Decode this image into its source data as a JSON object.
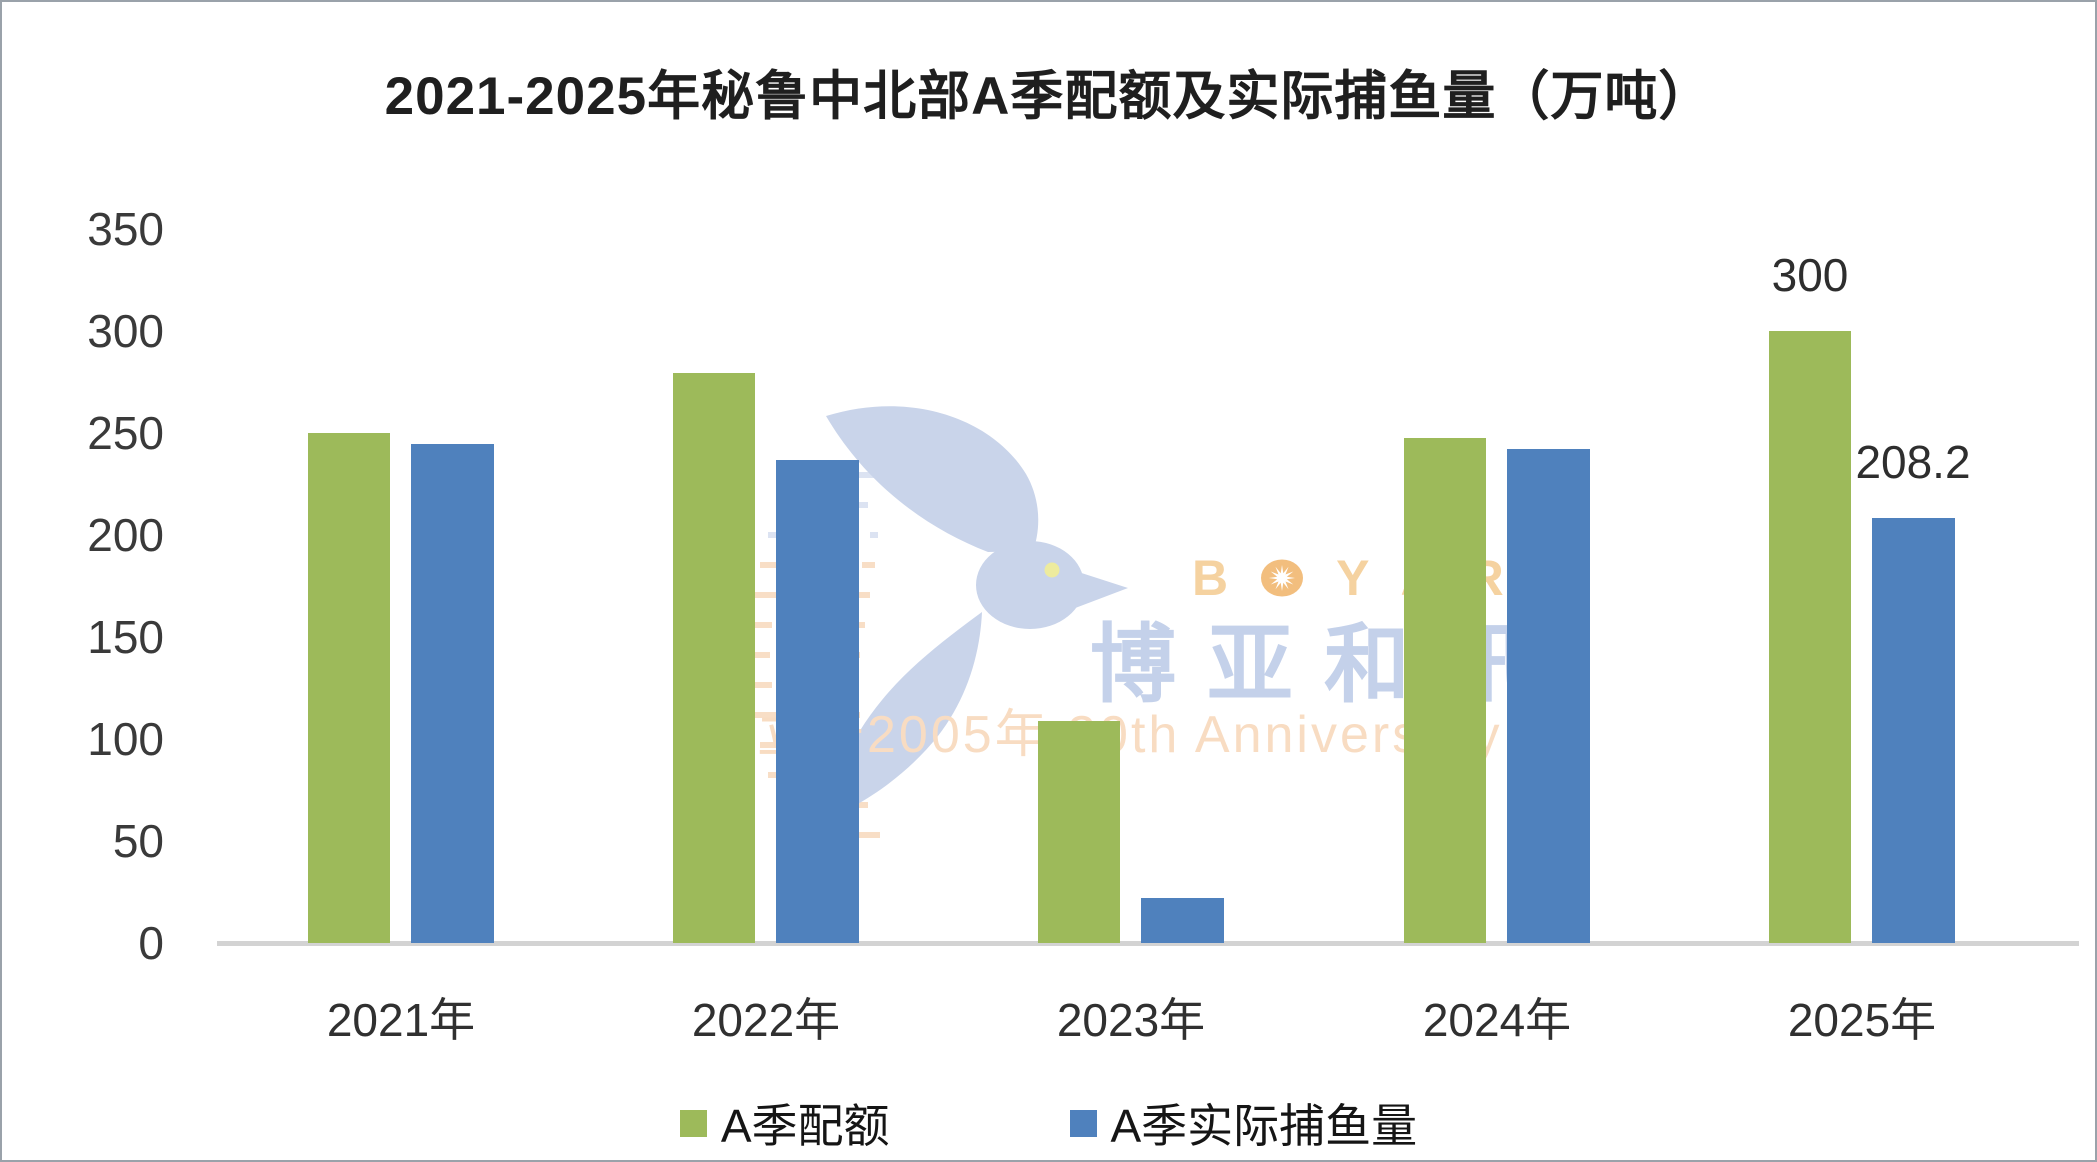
{
  "title": "2021-2025年秘鲁中北部A季配额及实际捕鱼量（万吨）",
  "chart_data": {
    "type": "bar",
    "title": "2021-2025年秘鲁中北部A季配额及实际捕鱼量（万吨）",
    "categories": [
      "2021年",
      "2022年",
      "2023年",
      "2024年",
      "2025年"
    ],
    "series": [
      {
        "name": "A季配额",
        "color": "#9DBA5A",
        "values": [
          250,
          279.2,
          109,
          247.5,
          300
        ],
        "data_labels": [
          "",
          "",
          "",
          "",
          "300"
        ]
      },
      {
        "name": "A季实际捕鱼量",
        "color": "#4F81BD",
        "values": [
          244.5,
          237,
          22,
          242,
          208.2
        ],
        "data_labels": [
          "",
          "",
          "",
          "",
          "208.2"
        ]
      }
    ],
    "xlabel": "",
    "ylabel": "",
    "ylim": [
      0,
      350
    ],
    "yticks": [
      0,
      50,
      100,
      150,
      200,
      250,
      300,
      350
    ],
    "grid": false,
    "legend_position": "bottom"
  },
  "axis": {
    "line_color": "#d3d3d3",
    "tick_color": "#3a3a3a"
  },
  "watermark": {
    "brand_latin": "BOYAR",
    "brand_cjk": "博亚和讯",
    "anniversary": "创立于2005年 20th Anniversary",
    "colors": {
      "bird": "#c9d4ea",
      "bird_eye": "#edeb9e",
      "latin": "#f5d2a0",
      "sunburst": "#f2be7e",
      "cjk": "#c4d1ea",
      "anniversary_text": "#f8dcc2",
      "speedline_orange": "#f8dec6",
      "speedline_blue": "#dce3f2"
    }
  }
}
